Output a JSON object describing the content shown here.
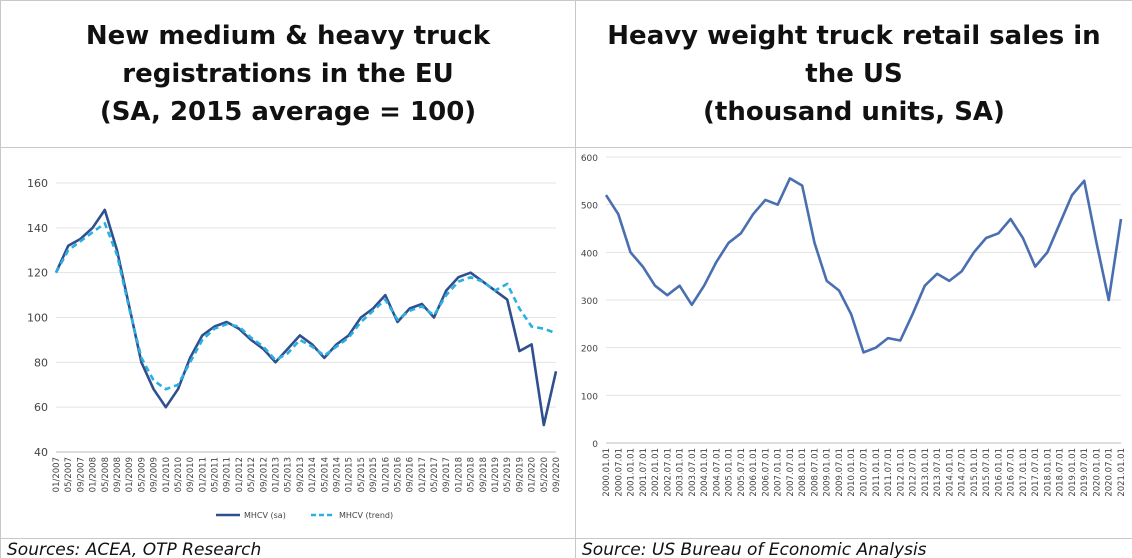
{
  "chart_data": [
    {
      "type": "line",
      "title": "New medium & heavy truck registrations in the EU",
      "subtitle": "(SA, 2015 average = 100)",
      "source": "Sources: ACEA, OTP Research",
      "categories": [
        "01/2007",
        "05/2007",
        "09/2007",
        "01/2008",
        "05/2008",
        "09/2008",
        "01/2009",
        "05/2009",
        "09/2009",
        "01/2010",
        "05/2010",
        "09/2010",
        "01/2011",
        "05/2011",
        "09/2011",
        "01/2012",
        "05/2012",
        "09/2012",
        "01/2013",
        "05/2013",
        "09/2013",
        "01/2014",
        "05/2014",
        "09/2014",
        "01/2015",
        "05/2015",
        "09/2015",
        "01/2016",
        "05/2016",
        "09/2016",
        "01/2017",
        "05/2017",
        "09/2017",
        "01/2018",
        "05/2018",
        "09/2018",
        "01/2019",
        "05/2019",
        "09/2019",
        "01/2020",
        "05/2020",
        "09/2020"
      ],
      "series": [
        {
          "name": "MHCV (sa)",
          "color": "#2f4f8f",
          "line_style": "solid",
          "values": [
            120,
            132,
            135,
            140,
            148,
            130,
            105,
            80,
            68,
            60,
            68,
            82,
            92,
            96,
            98,
            95,
            90,
            86,
            80,
            86,
            92,
            88,
            82,
            88,
            92,
            100,
            104,
            110,
            98,
            104,
            106,
            100,
            112,
            118,
            120,
            116,
            112,
            108,
            85,
            88,
            52,
            76
          ]
        },
        {
          "name": "MHCV (trend)",
          "color": "#2ab0e0",
          "line_style": "dashed",
          "values": [
            120,
            130,
            134,
            138,
            142,
            128,
            104,
            82,
            72,
            68,
            70,
            80,
            90,
            95,
            97,
            96,
            91,
            87,
            81,
            84,
            90,
            87,
            83,
            87,
            91,
            98,
            103,
            108,
            99,
            103,
            105,
            101,
            110,
            116,
            118,
            116,
            112,
            115,
            104,
            96,
            95,
            93
          ]
        }
      ],
      "ylim": [
        40,
        160
      ],
      "yticks": [
        40,
        60,
        80,
        100,
        120,
        140,
        160
      ],
      "grid": true,
      "legend": "bottom"
    },
    {
      "type": "line",
      "title": "Heavy weight truck retail sales in the US",
      "subtitle": "(thousand units, SA)",
      "source": "Source: US Bureau of Economic Analysis",
      "categories": [
        "2000.01.01",
        "2000.07.01",
        "2001.01.01",
        "2001.07.01",
        "2002.01.01",
        "2002.07.01",
        "2003.01.01",
        "2003.07.01",
        "2004.01.01",
        "2004.07.01",
        "2005.01.01",
        "2005.07.01",
        "2006.01.01",
        "2006.07.01",
        "2007.01.01",
        "2007.07.01",
        "2008.01.01",
        "2008.07.01",
        "2009.01.01",
        "2009.07.01",
        "2010.01.01",
        "2010.07.01",
        "2011.01.01",
        "2011.07.01",
        "2012.01.01",
        "2012.07.01",
        "2013.01.01",
        "2013.07.01",
        "2014.01.01",
        "2014.07.01",
        "2015.01.01",
        "2015.07.01",
        "2016.01.01",
        "2016.07.01",
        "2017.01.01",
        "2017.07.01",
        "2018.01.01",
        "2018.07.01",
        "2019.01.01",
        "2019.07.01",
        "2020.01.01",
        "2020.07.01",
        "2021.01.01"
      ],
      "series": [
        {
          "color": "#4a6fb0",
          "line_style": "solid",
          "values": [
            520,
            480,
            400,
            370,
            330,
            310,
            330,
            290,
            330,
            380,
            420,
            440,
            480,
            510,
            500,
            555,
            540,
            420,
            340,
            320,
            270,
            190,
            200,
            220,
            215,
            270,
            330,
            355,
            340,
            360,
            400,
            430,
            440,
            470,
            430,
            370,
            400,
            460,
            520,
            550,
            420,
            300,
            470
          ]
        }
      ],
      "ylim": [
        0,
        600
      ],
      "yticks": [
        0,
        100,
        200,
        300,
        400,
        500,
        600
      ],
      "grid": true
    }
  ]
}
